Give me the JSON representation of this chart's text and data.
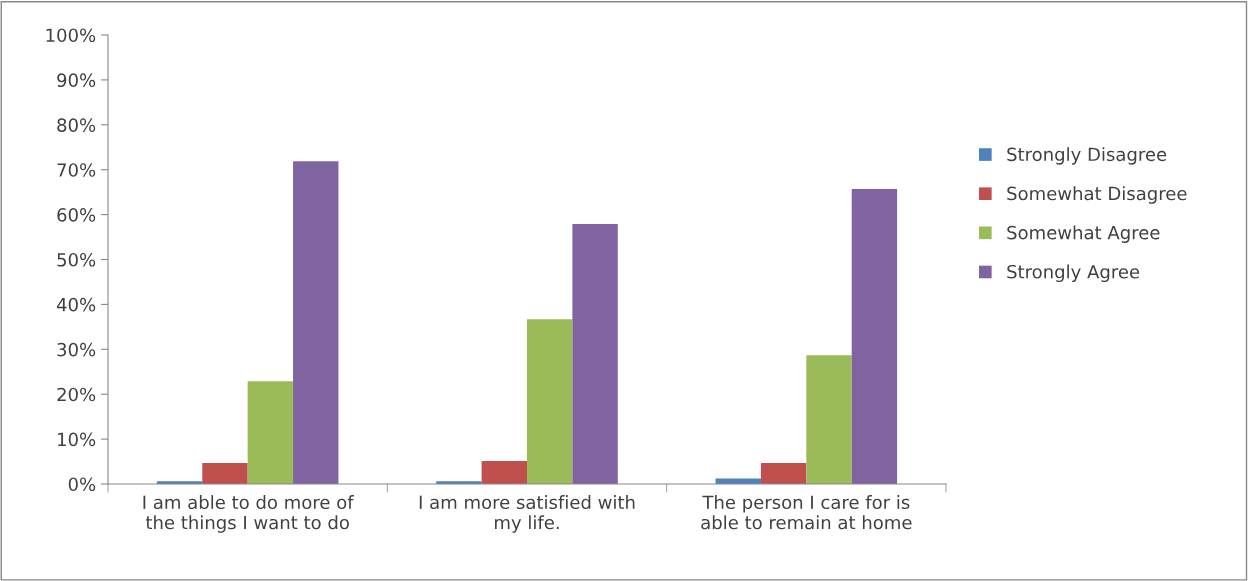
{
  "chart_data": {
    "type": "bar",
    "categories": [
      "I am able to do more of\nthe things I want to do",
      "I am more satisfied with\nmy life.",
      "The person I care for is\nable to remain at home"
    ],
    "series": [
      {
        "name": "Strongly Disagree",
        "color": "#4f81bd",
        "values": [
          0.6,
          0.6,
          1.2
        ]
      },
      {
        "name": "Somewhat Disagree",
        "color": "#c0504d",
        "values": [
          4.7,
          5.1,
          4.7
        ]
      },
      {
        "name": "Somewhat Agree",
        "color": "#9bbb59",
        "values": [
          22.9,
          36.7,
          28.7
        ]
      },
      {
        "name": "Strongly Agree",
        "color": "#8064a2",
        "values": [
          71.9,
          57.9,
          65.7
        ]
      }
    ],
    "ylim": [
      0,
      100
    ],
    "yticks": [
      {
        "value": 0,
        "label": "0%"
      },
      {
        "value": 10,
        "label": "10%"
      },
      {
        "value": 20,
        "label": "20%"
      },
      {
        "value": 30,
        "label": "30%"
      },
      {
        "value": 40,
        "label": "40%"
      },
      {
        "value": 50,
        "label": "50%"
      },
      {
        "value": 60,
        "label": "60%"
      },
      {
        "value": 70,
        "label": "70%"
      },
      {
        "value": 80,
        "label": "80%"
      },
      {
        "value": 90,
        "label": "90%"
      },
      {
        "value": 100,
        "label": "100%"
      }
    ],
    "grid": false,
    "legend": "right"
  }
}
